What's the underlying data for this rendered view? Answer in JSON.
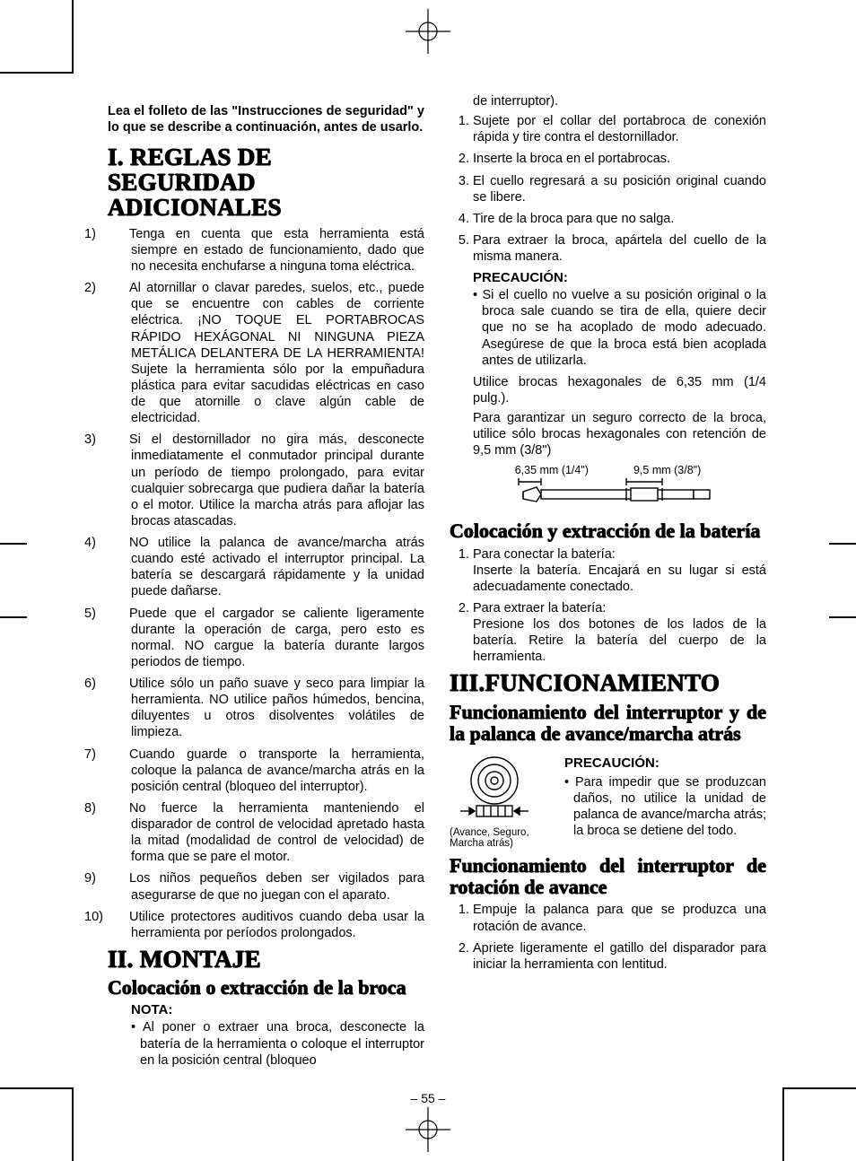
{
  "page_number": "– 55 –",
  "intro": "Lea el folleto de las \"Instrucciones de seguridad\" y lo que se describe a continuación, antes de usarlo.",
  "sec1": {
    "roman": "I.",
    "title": "REGLAS DE SEGURIDAD ADICIONALES",
    "items": [
      "Tenga en cuenta que esta herramienta está siempre en estado de funcionamiento, dado que no necesita enchufarse a ninguna toma eléctrica.",
      "Al atornillar o clavar paredes, suelos, etc., puede que se encuentre con cables de corriente eléctrica. ¡NO TOQUE EL PORTABROCAS RÁPIDO HEXÁGONAL NI NINGUNA PIEZA METÁLICA DELANTERA DE LA HERRAMIENTA! Sujete la herramienta sólo por la empuñadura plástica para evitar sacudidas eléctricas en caso de que atornille o clave algún cable de electricidad.",
      "Si el destornillador no gira más, desconecte inmediatamente el conmutador principal durante un período de tiempo prolongado, para evitar cualquier sobrecarga que pudiera dañar la batería o el motor. Utilice la marcha atrás para aflojar las brocas atascadas.",
      "NO utilice la palanca de avance/marcha atrás cuando esté activado el interruptor principal. La batería se descargará rápidamente y la unidad puede dañarse.",
      "Puede que el cargador se caliente ligeramente durante la operación de carga, pero esto es normal. NO cargue la batería durante largos periodos de tiempo.",
      "Utilice sólo un paño suave y seco para limpiar la herramienta. NO utilice paños húmedos, bencina, diluyentes u otros disolventes volátiles de limpieza.",
      "Cuando guarde o transporte la herramienta, coloque la palanca de avance/marcha atrás en la posición central (bloqueo del interruptor).",
      "No fuerce la herramienta manteniendo el disparador de control de velocidad apretado hasta la mitad (modalidad de control de velocidad) de forma que se pare el motor.",
      "Los niños pequeños deben ser vigilados para asegurarse de que no juegan con el aparato.",
      "Utilice protectores auditivos cuando deba usar la herramienta por períodos prolongados."
    ]
  },
  "sec2": {
    "roman": "II.",
    "title": "MONTAJE",
    "sub1": "Colocación o extracción de la broca",
    "nota_head": "NOTA:",
    "nota_bullet": "• Al poner o extraer una broca, desconecte la batería de la herramienta o coloque el interruptor en la posición central (bloqueo de interruptor).",
    "items": [
      "Sujete por el collar del portabroca de conexión rápida y tire contra el destornillador.",
      "Inserte la broca en el portabrocas.",
      "El cuello regresará a su posición original cuando se libere.",
      "Tire de la broca para que no salga.",
      "Para extraer la broca, apártela del cuello de la misma manera."
    ],
    "prec_head": "PRECAUCIÓN:",
    "prec_bullet": "• Si el cuello no vuelve a su posición original o la broca sale cuando se tira de ella, quiere decir que no se ha acoplado de modo adecuado. Asegúrese de que la broca está bien acoplada antes de utilizarla.",
    "hex1": "Utilice brocas hexagonales de 6,35 mm (1/4 pulg.).",
    "hex2": "Para garantizar un seguro correcto de la broca, utilice sólo brocas hexagonales con retención de 9,5 mm (3/8\")",
    "dim_labels": [
      "6,35 mm (1/4\")",
      "9,5 mm (3/8\")"
    ],
    "sub2": "Colocación y extracción de la batería",
    "batt_items": [
      "Para conectar la batería:\nInserte la batería. Encajará en su lugar si está adecuadamente conectado.",
      "Para extraer la batería:\nPresione los dos botones de los lados de la batería. Retire la batería del cuerpo de la herramienta."
    ]
  },
  "sec3": {
    "roman": "III.",
    "title": "FUNCIONAMIENTO",
    "sub1": "Funcionamiento del interruptor y de la palanca de avance/marcha atrás",
    "switch_caption": "(Avance, Seguro, Marcha atrás)",
    "prec_head": "PRECAUCIÓN:",
    "prec_bullet": "• Para impedir que se produzcan daños, no utilice la unidad de palanca de avance/marcha atrás; la broca se detiene del todo.",
    "sub2": "Funcionamiento del interruptor de rotación de avance",
    "items2": [
      "Empuje la palanca para que se produzca una rotación de avance.",
      "Apriete ligeramente el gatillo del disparador para iniciar la herramienta con lentitud."
    ]
  },
  "colors": {
    "text": "#000000",
    "background": "#ffffff"
  },
  "fonts": {
    "body_family": "Arial, Helvetica, sans-serif",
    "heading_family": "Times New Roman, serif",
    "body_size_pt": 11,
    "h1_size_pt": 20,
    "h2_size_pt": 17
  }
}
